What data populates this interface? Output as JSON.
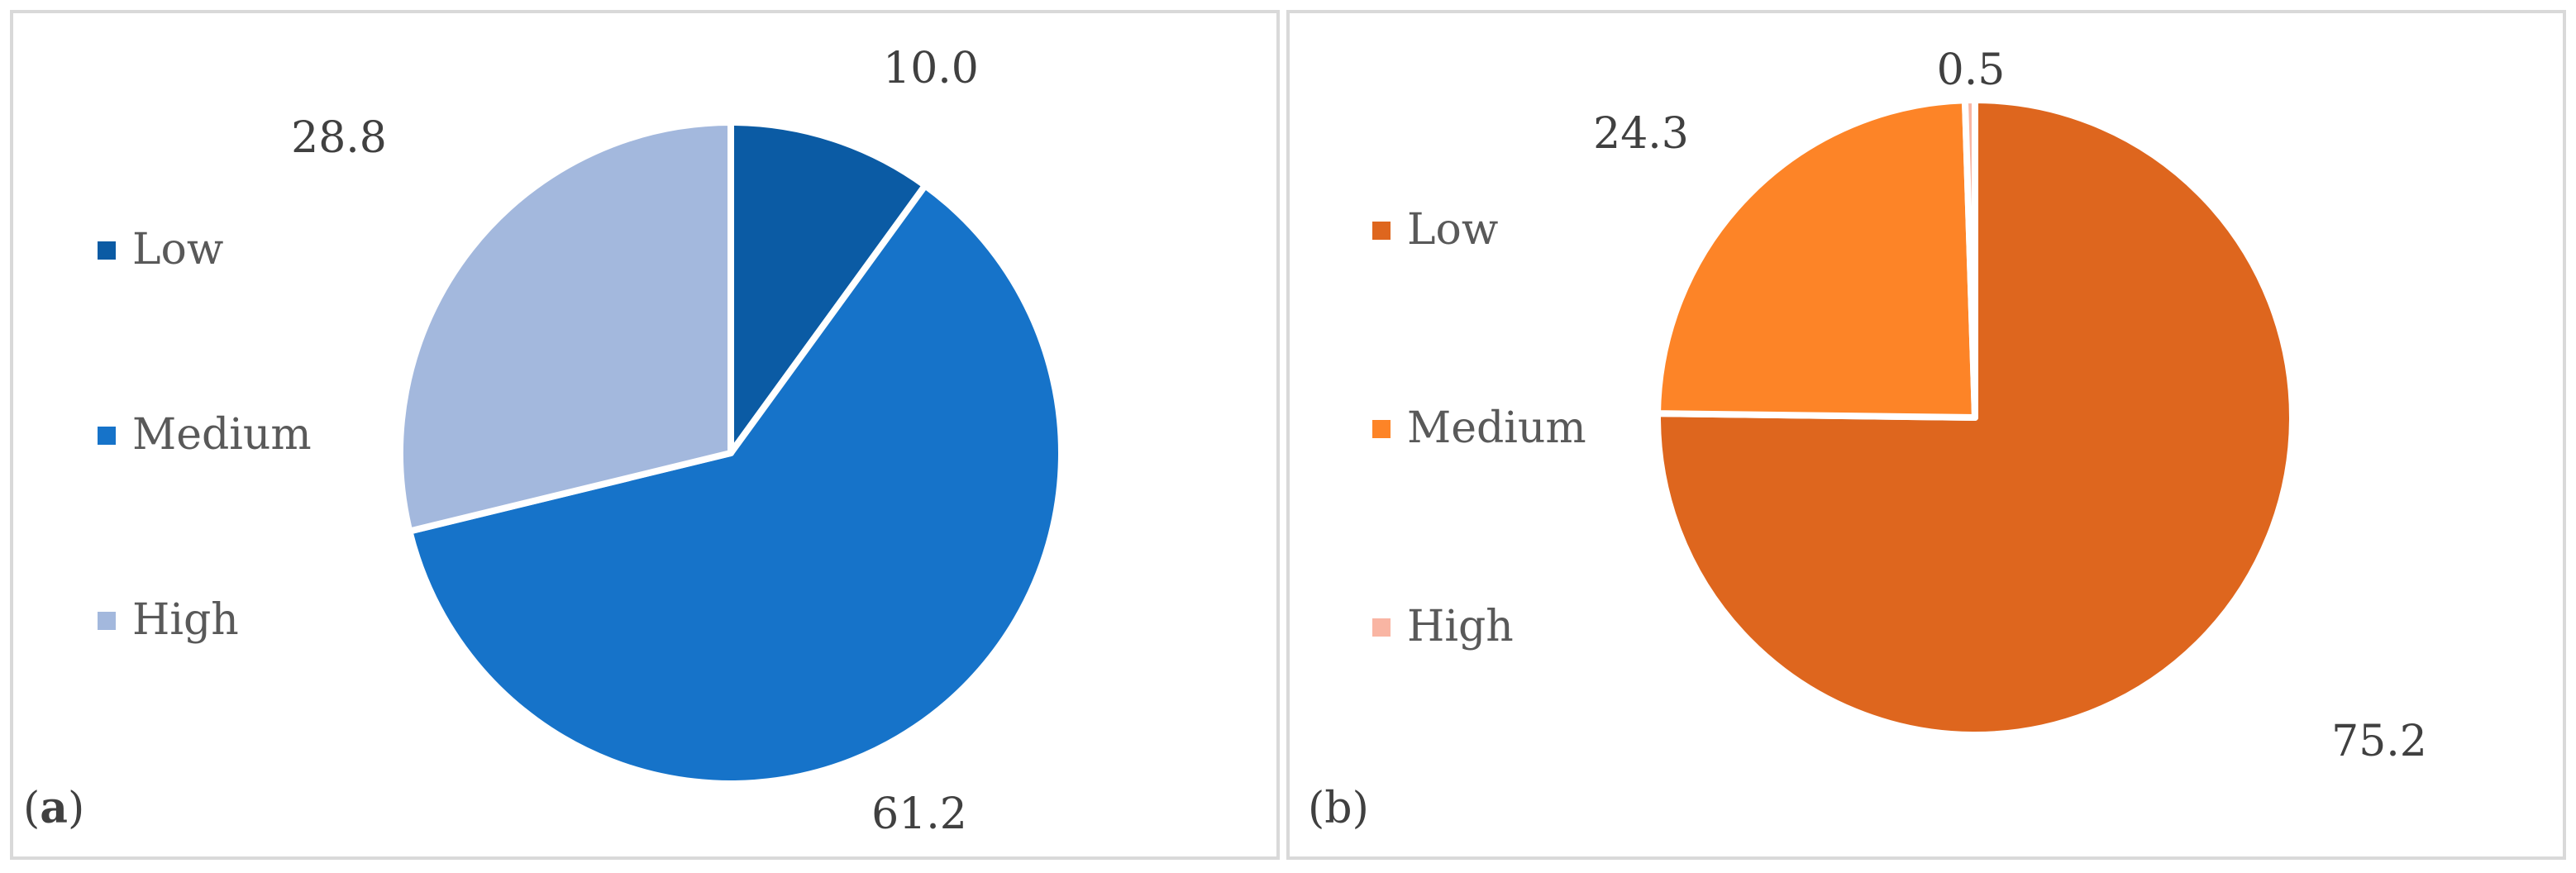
{
  "chart_data": [
    {
      "type": "pie",
      "panel_label": "a",
      "categories": [
        "Low",
        "Medium",
        "High"
      ],
      "values": [
        10.0,
        61.2,
        28.8
      ],
      "value_labels": [
        "10.0",
        "61.2",
        "28.8"
      ],
      "colors": [
        "#0B5BA4",
        "#1673C9",
        "#A3B8DD"
      ],
      "start_angle_deg": 0,
      "direction": "clockwise",
      "legend_position": "left"
    },
    {
      "type": "pie",
      "panel_label": "b",
      "categories": [
        "Low",
        "Medium",
        "High"
      ],
      "values": [
        75.2,
        24.3,
        0.5
      ],
      "value_labels": [
        "75.2",
        "24.3",
        "0.5"
      ],
      "colors": [
        "#DE661E",
        "#FD8427",
        "#F9B5A3"
      ],
      "start_angle_deg": 0,
      "direction": "clockwise",
      "legend_position": "left"
    }
  ]
}
